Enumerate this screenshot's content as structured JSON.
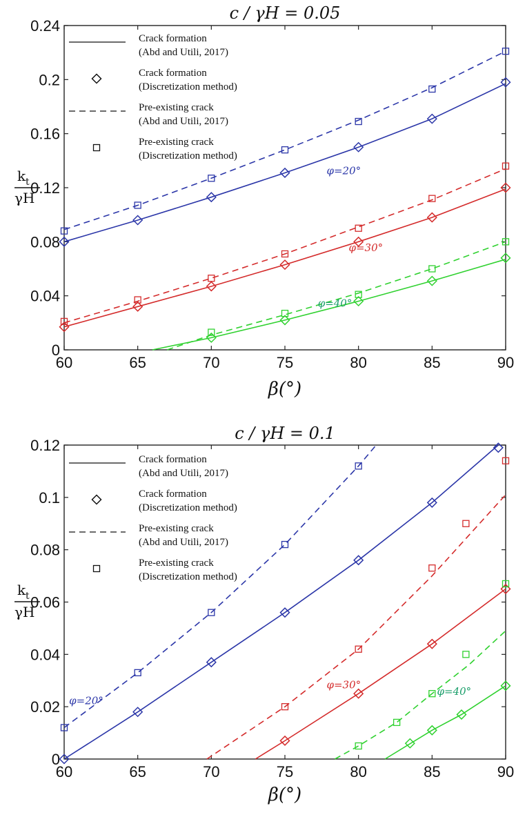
{
  "chart_data": [
    {
      "type": "line",
      "title": "c / γH = 0.05",
      "xlabel": "β(°)",
      "ylabel": "k_t/γH",
      "ylabel_num": "k",
      "ylabel_sub": "t",
      "ylabel_den": "γH",
      "xlim": [
        60,
        90
      ],
      "ylim": [
        0,
        0.24
      ],
      "xticks": [
        60,
        65,
        70,
        75,
        80,
        85,
        90
      ],
      "yticks": [
        0,
        0.04,
        0.08,
        0.12,
        0.16,
        0.2,
        0.24
      ],
      "ytick_labels": [
        "0",
        "0.04",
        "0.08",
        "0.12",
        "0.16",
        "0.2",
        "0.24"
      ],
      "grid": false,
      "legend_position": "top-left",
      "legend": [
        {
          "style": "solid-line",
          "line1": "Crack formation",
          "line2": "(Abd and Utili, 2017)"
        },
        {
          "style": "diamond",
          "line1": "Crack formation",
          "line2": "(Discretization method)"
        },
        {
          "style": "dashed-line",
          "line1": "Pre-existing crack",
          "line2": "(Abd and Utili, 2017)"
        },
        {
          "style": "square",
          "line1": "Pre-existing crack",
          "line2": "(Discretization method)"
        }
      ],
      "groups": [
        {
          "label": "φ=20°",
          "color": "#2b36a8",
          "crack_formation_line": {
            "x": [
              60,
              65,
              70,
              75,
              80,
              85,
              90
            ],
            "y": [
              0.08,
              0.096,
              0.113,
              0.131,
              0.15,
              0.171,
              0.197
            ]
          },
          "crack_formation_points": {
            "x": [
              60,
              65,
              70,
              75,
              80,
              85,
              90
            ],
            "y": [
              0.08,
              0.096,
              0.113,
              0.131,
              0.15,
              0.171,
              0.198
            ]
          },
          "pre_existing_line": {
            "x": [
              60,
              65,
              70,
              75,
              80,
              85,
              90
            ],
            "y": [
              0.089,
              0.107,
              0.127,
              0.148,
              0.17,
              0.194,
              0.221
            ]
          },
          "pre_existing_points": {
            "x": [
              60,
              65,
              70,
              75,
              80,
              85,
              90
            ],
            "y": [
              0.088,
              0.107,
              0.127,
              0.148,
              0.169,
              0.193,
              0.221
            ]
          }
        },
        {
          "label": "φ=30°",
          "color": "#d42b2b",
          "crack_formation_line": {
            "x": [
              60,
              65,
              70,
              75,
              80,
              85,
              90
            ],
            "y": [
              0.017,
              0.032,
              0.047,
              0.063,
              0.08,
              0.098,
              0.119
            ]
          },
          "crack_formation_points": {
            "x": [
              60,
              65,
              70,
              75,
              80,
              85,
              90
            ],
            "y": [
              0.017,
              0.032,
              0.047,
              0.063,
              0.08,
              0.098,
              0.12
            ]
          },
          "pre_existing_line": {
            "x": [
              60,
              65,
              70,
              75,
              80,
              85,
              90
            ],
            "y": [
              0.02,
              0.036,
              0.053,
              0.071,
              0.091,
              0.111,
              0.134
            ]
          },
          "pre_existing_points": {
            "x": [
              60,
              65,
              70,
              75,
              80,
              85,
              90
            ],
            "y": [
              0.021,
              0.037,
              0.053,
              0.071,
              0.09,
              0.112,
              0.136
            ]
          }
        },
        {
          "label": "φ=40°",
          "color": "#2fd12f",
          "label_color": "#1a9e6a",
          "crack_formation_line": {
            "x": [
              66,
              70,
              75,
              80,
              85,
              90
            ],
            "y": [
              0,
              0.009,
              0.022,
              0.036,
              0.051,
              0.067
            ]
          },
          "crack_formation_points": {
            "x": [
              70,
              75,
              80,
              85,
              90
            ],
            "y": [
              0.009,
              0.022,
              0.036,
              0.051,
              0.068
            ]
          },
          "pre_existing_line": {
            "x": [
              67,
              70,
              75,
              80,
              85,
              90
            ],
            "y": [
              0,
              0.011,
              0.026,
              0.042,
              0.06,
              0.08
            ]
          },
          "pre_existing_points": {
            "x": [
              70,
              75,
              80,
              85,
              90
            ],
            "y": [
              0.013,
              0.027,
              0.041,
              0.06,
              0.08
            ]
          }
        }
      ]
    },
    {
      "type": "line",
      "title": "c / γH = 0.1",
      "xlabel": "β(°)",
      "ylabel": "k_t/γH",
      "ylabel_num": "k",
      "ylabel_sub": "t",
      "ylabel_den": "γH",
      "xlim": [
        60,
        90
      ],
      "ylim": [
        0,
        0.12
      ],
      "xticks": [
        60,
        65,
        70,
        75,
        80,
        85,
        90
      ],
      "yticks": [
        0,
        0.02,
        0.04,
        0.06,
        0.08,
        0.1,
        0.12
      ],
      "ytick_labels": [
        "0",
        "0.02",
        "0.04",
        "0.06",
        "0.08",
        "0.1",
        "0.12"
      ],
      "grid": false,
      "legend_position": "top-left",
      "legend": [
        {
          "style": "solid-line",
          "line1": "Crack formation",
          "line2": "(Abd and Utili, 2017)"
        },
        {
          "style": "diamond",
          "line1": "Crack formation",
          "line2": "(Discretization method)"
        },
        {
          "style": "dashed-line",
          "line1": "Pre-existing crack",
          "line2": "(Abd and Utili, 2017)"
        },
        {
          "style": "square",
          "line1": "Pre-existing crack",
          "line2": "(Discretization method)"
        }
      ],
      "groups": [
        {
          "label": "φ=20°",
          "color": "#2b36a8",
          "crack_formation_line": {
            "x": [
              60,
              65,
              70,
              75,
              80,
              85,
              89.5
            ],
            "y": [
              0,
              0.018,
              0.037,
              0.056,
              0.076,
              0.098,
              0.12
            ]
          },
          "crack_formation_points": {
            "x": [
              60,
              65,
              70,
              75,
              80,
              85,
              89.5
            ],
            "y": [
              0,
              0.018,
              0.037,
              0.056,
              0.076,
              0.098,
              0.119
            ]
          },
          "pre_existing_line": {
            "x": [
              60,
              65,
              70,
              75,
              80,
              81.2
            ],
            "y": [
              0.012,
              0.033,
              0.056,
              0.082,
              0.112,
              0.12
            ]
          },
          "pre_existing_points": {
            "x": [
              60,
              65,
              70,
              75,
              80
            ],
            "y": [
              0.012,
              0.033,
              0.056,
              0.082,
              0.112
            ]
          }
        },
        {
          "label": "φ=30°",
          "color": "#d42b2b",
          "crack_formation_line": {
            "x": [
              73,
              75,
              80,
              85,
              90
            ],
            "y": [
              0,
              0.007,
              0.025,
              0.044,
              0.065
            ]
          },
          "crack_formation_points": {
            "x": [
              75,
              80,
              85,
              90
            ],
            "y": [
              0.007,
              0.025,
              0.044,
              0.065
            ]
          },
          "pre_existing_line": {
            "x": [
              69.7,
              75,
              80,
              85,
              90
            ],
            "y": [
              0,
              0.02,
              0.042,
              0.07,
              0.101
            ]
          },
          "pre_existing_points": {
            "x": [
              75,
              80,
              85,
              87.3,
              90
            ],
            "y": [
              0.02,
              0.042,
              0.073,
              0.09,
              0.114
            ]
          }
        },
        {
          "label": "φ=40°",
          "color": "#2fd12f",
          "label_color": "#1a9e6a",
          "crack_formation_line": {
            "x": [
              81.8,
              85,
              87,
              90
            ],
            "y": [
              0,
              0.011,
              0.017,
              0.028
            ]
          },
          "crack_formation_points": {
            "x": [
              83.5,
              85,
              87,
              90
            ],
            "y": [
              0.006,
              0.011,
              0.017,
              0.028
            ]
          },
          "pre_existing_line": {
            "x": [
              78.4,
              80,
              82.6,
              85,
              87.5,
              90
            ],
            "y": [
              0,
              0.005,
              0.014,
              0.025,
              0.036,
              0.049
            ]
          },
          "pre_existing_points": {
            "x": [
              80,
              82.6,
              85,
              87.3,
              90
            ],
            "y": [
              0.005,
              0.014,
              0.025,
              0.04,
              0.067
            ]
          }
        }
      ]
    }
  ]
}
